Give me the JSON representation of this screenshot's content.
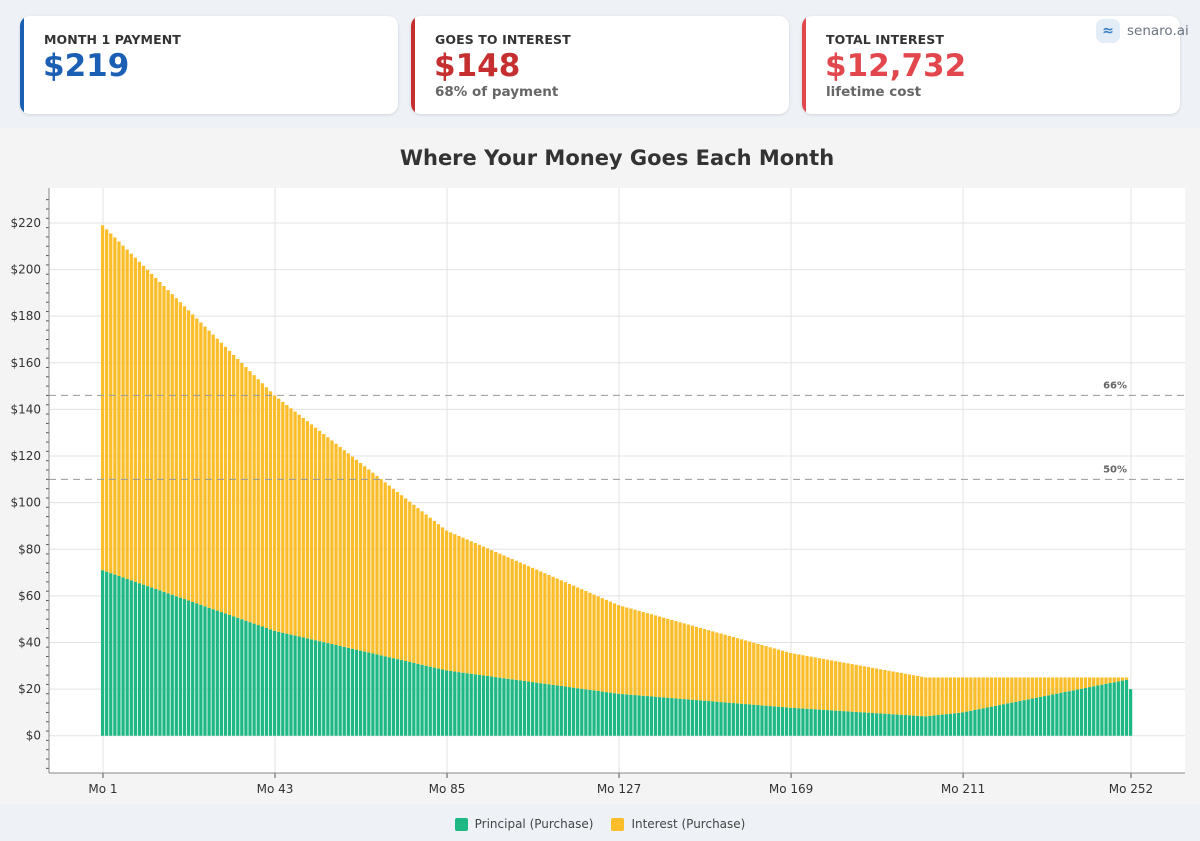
{
  "cards": [
    {
      "label": "MONTH 1 PAYMENT",
      "value": "$219",
      "sub": "",
      "color": "#1b5fb5"
    },
    {
      "label": "GOES TO INTEREST",
      "value": "$148",
      "sub": "68% of payment",
      "color": "#c62f2f"
    },
    {
      "label": "TOTAL INTEREST",
      "value": "$12,732",
      "sub": "lifetime cost",
      "color": "#e2474d"
    }
  ],
  "brand": {
    "name": "senaro.ai"
  },
  "legend": [
    {
      "label": "Principal (Purchase)",
      "color": "#1db884"
    },
    {
      "label": "Interest (Purchase)",
      "color": "#fbbd2a"
    }
  ],
  "chart_data": {
    "type": "bar",
    "stacked": true,
    "title": "Where Your Money Goes Each Month",
    "xlabel": "",
    "ylabel": "",
    "x_range": [
      1,
      252
    ],
    "x_ticks": [
      "Mo 1",
      "Mo 43",
      "Mo 85",
      "Mo 127",
      "Mo 169",
      "Mo 211",
      "Mo 252"
    ],
    "y_ticks": [
      "$0",
      "$20",
      "$40",
      "$60",
      "$80",
      "$100",
      "$120",
      "$140",
      "$160",
      "$180",
      "$200",
      "$220"
    ],
    "ylim": [
      -16,
      235
    ],
    "grid": true,
    "series": [
      {
        "name": "Principal (Purchase)",
        "color": "#1db884",
        "points": [
          [
            1,
            71
          ],
          [
            43,
            45
          ],
          [
            85,
            28
          ],
          [
            127,
            18
          ],
          [
            169,
            12
          ],
          [
            202,
            8.3
          ],
          [
            211,
            10
          ],
          [
            251,
            24
          ],
          [
            252,
            20
          ]
        ]
      },
      {
        "name": "Interest (Purchase)",
        "color": "#fbbd2a",
        "points": [
          [
            1,
            148
          ],
          [
            43,
            101
          ],
          [
            85,
            60
          ],
          [
            127,
            38
          ],
          [
            169,
            23.5
          ],
          [
            202,
            16.7
          ],
          [
            211,
            15
          ],
          [
            251,
            1
          ],
          [
            252,
            0
          ]
        ]
      }
    ],
    "reference_lines": [
      {
        "label": "66%",
        "y": 146
      },
      {
        "label": "50%",
        "y": 110
      }
    ]
  }
}
